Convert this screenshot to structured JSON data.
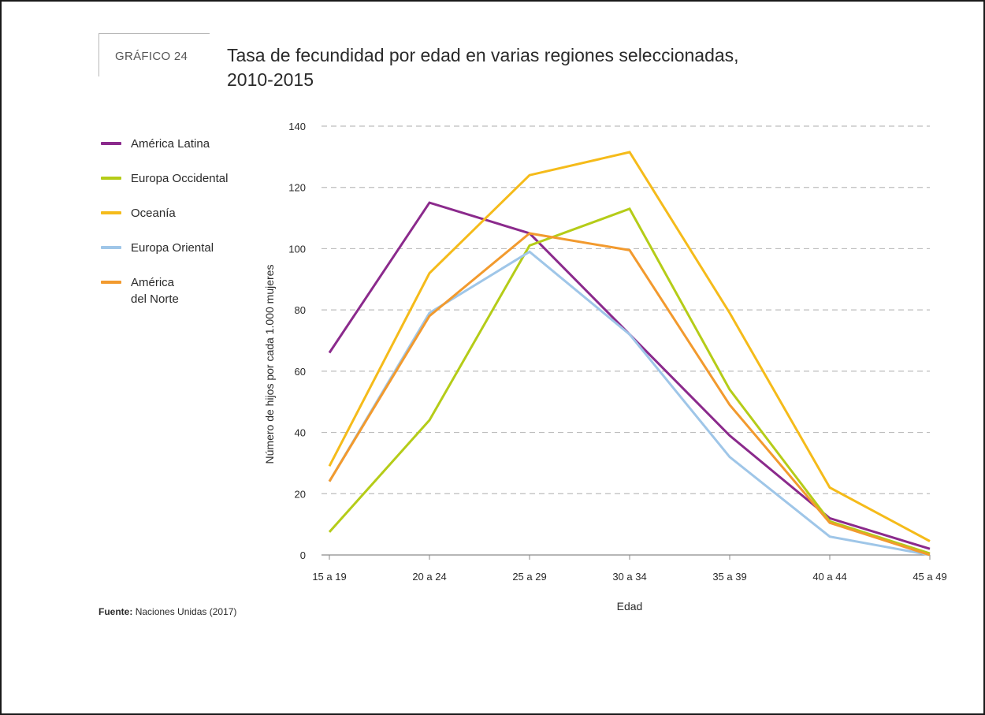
{
  "header": {
    "tag": "GRÁFICO 24",
    "title_line1": "Tasa de fecundidad por edad en varias regiones seleccionadas,",
    "title_line2": "2010-2015"
  },
  "source": {
    "label": "Fuente:",
    "text": "Naciones Unidas (2017)"
  },
  "chart_data": {
    "type": "line",
    "title": "Tasa de fecundidad por edad en varias regiones seleccionadas, 2010-2015",
    "xlabel": "Edad",
    "ylabel": "Número de hijos por cada 1.000 mujeres",
    "categories": [
      "15 a 19",
      "20 a 24",
      "25 a 29",
      "30 a 34",
      "35 a 39",
      "40 a 44",
      "45 a 49"
    ],
    "ylim": [
      0,
      140
    ],
    "yticks": [
      0,
      20,
      40,
      60,
      80,
      100,
      120,
      140
    ],
    "grid": "horizontal dashed",
    "legend_position": "left",
    "series": [
      {
        "name": "América Latina",
        "color": "#8b2a8c",
        "values": [
          66,
          115,
          105,
          72,
          39,
          12,
          2
        ]
      },
      {
        "name": "Europa Occidental",
        "color": "#b5cc18",
        "values": [
          7.5,
          44,
          101,
          113,
          54,
          11,
          0.5
        ]
      },
      {
        "name": "Oceanía",
        "color": "#f5bb1a",
        "values": [
          29,
          92,
          124,
          131.5,
          79,
          22,
          4.5
        ]
      },
      {
        "name": "Europa Oriental",
        "color": "#9fc6e8",
        "values": [
          24,
          79,
          99,
          72,
          32,
          6,
          0
        ]
      },
      {
        "name": "América\ndel Norte",
        "color": "#f29a2e",
        "values": [
          24,
          78,
          105,
          99.5,
          49,
          10.5,
          0
        ]
      }
    ]
  }
}
